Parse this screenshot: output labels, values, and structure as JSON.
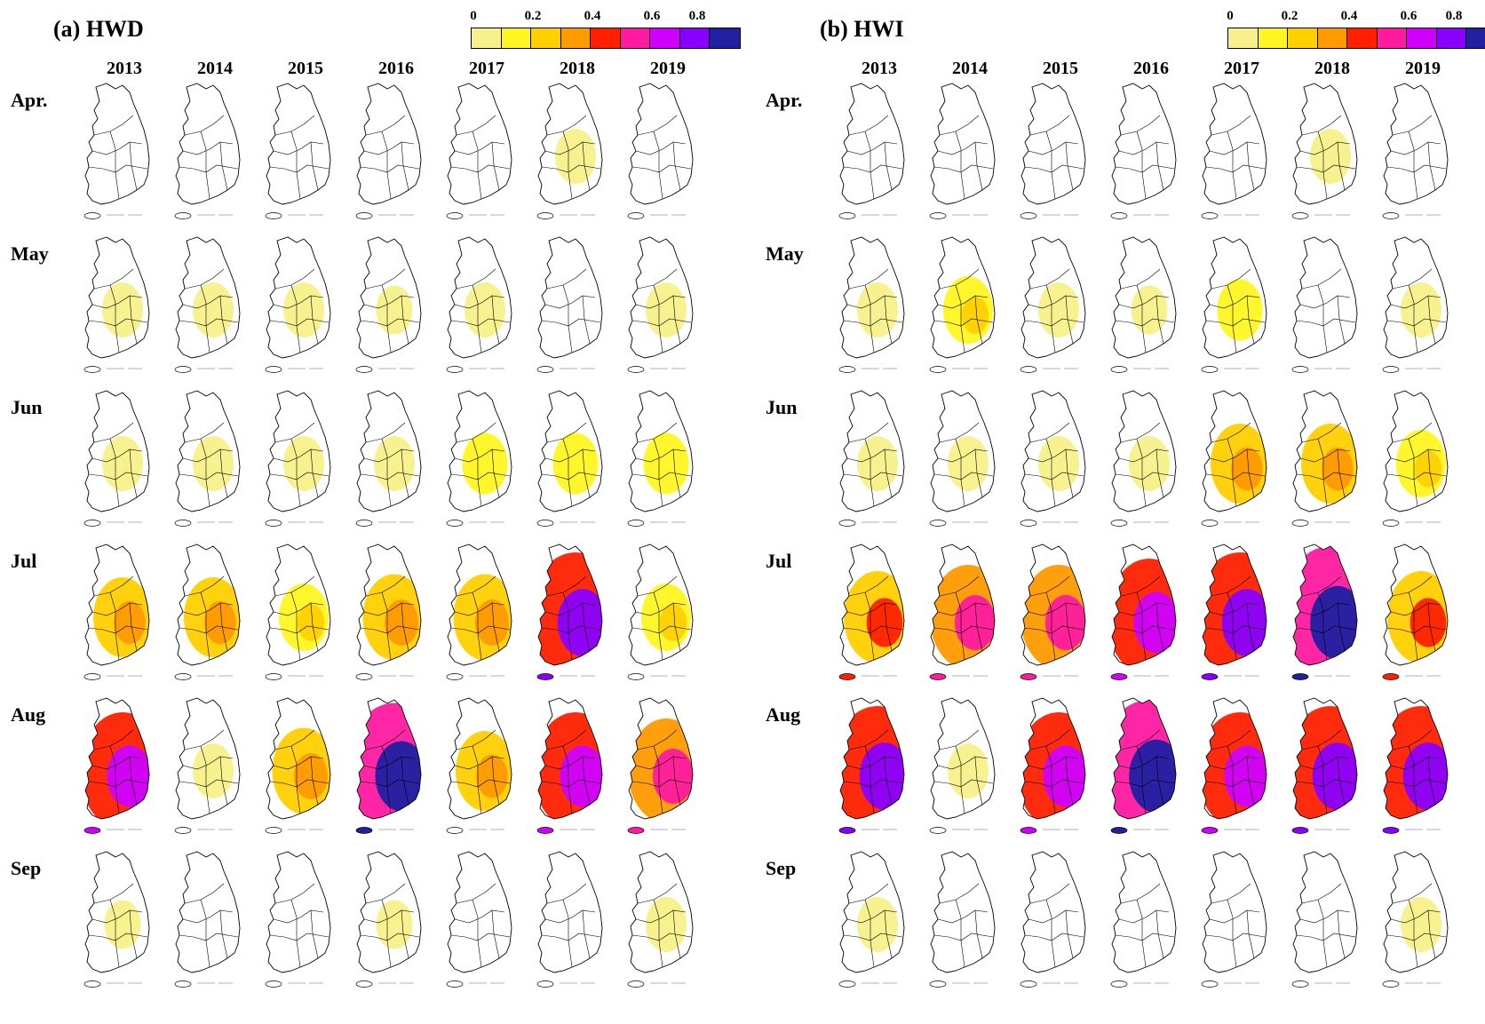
{
  "panels": [
    {
      "id": "hwd",
      "title": "(a) HWD",
      "colors": [
        "#f8f08a",
        "#fff520",
        "#ffd000",
        "#ff9a00",
        "#ff2000",
        "#ff1aa0",
        "#d000ff",
        "#8a00ff",
        "#2020a0"
      ]
    },
    {
      "id": "hwi",
      "title": "(b) HWI",
      "colors": [
        "#f8f08a",
        "#fff520",
        "#ffd000",
        "#ff9a00",
        "#ff2000",
        "#ff1aa0",
        "#d000ff",
        "#8a00ff",
        "#2020a0"
      ]
    }
  ],
  "colorbar_ticks": [
    "0",
    "0.2",
    "0.4",
    "0.6",
    "0.8"
  ],
  "years": [
    "2013",
    "2014",
    "2015",
    "2016",
    "2017",
    "2018",
    "2019"
  ],
  "months": [
    "Apr.",
    "May",
    "Jun",
    "Jul",
    "Aug",
    "Sep"
  ],
  "intensity": {
    "hwd": [
      [
        0,
        0,
        0,
        0,
        0,
        0.1,
        0
      ],
      [
        0.1,
        0.1,
        0.1,
        0.05,
        0.1,
        0,
        0.1
      ],
      [
        0.1,
        0.1,
        0.1,
        0.1,
        0.15,
        0.15,
        0.15
      ],
      [
        0.3,
        0.3,
        0.2,
        0.35,
        0.35,
        0.7,
        0.2
      ],
      [
        0.6,
        0.1,
        0.35,
        0.75,
        0.3,
        0.6,
        0.5
      ],
      [
        0.05,
        0,
        0,
        0.05,
        0,
        0,
        0.1
      ]
    ],
    "hwi": [
      [
        0,
        0,
        0,
        0,
        0,
        0.1,
        0
      ],
      [
        0.1,
        0.2,
        0.1,
        0.05,
        0.15,
        0,
        0.1
      ],
      [
        0.1,
        0.1,
        0.1,
        0.1,
        0.3,
        0.3,
        0.2
      ],
      [
        0.4,
        0.5,
        0.5,
        0.6,
        0.7,
        0.8,
        0.4
      ],
      [
        0.7,
        0.1,
        0.6,
        0.8,
        0.6,
        0.7,
        0.7
      ],
      [
        0.1,
        0,
        0,
        0,
        0,
        0,
        0.1
      ]
    ]
  }
}
